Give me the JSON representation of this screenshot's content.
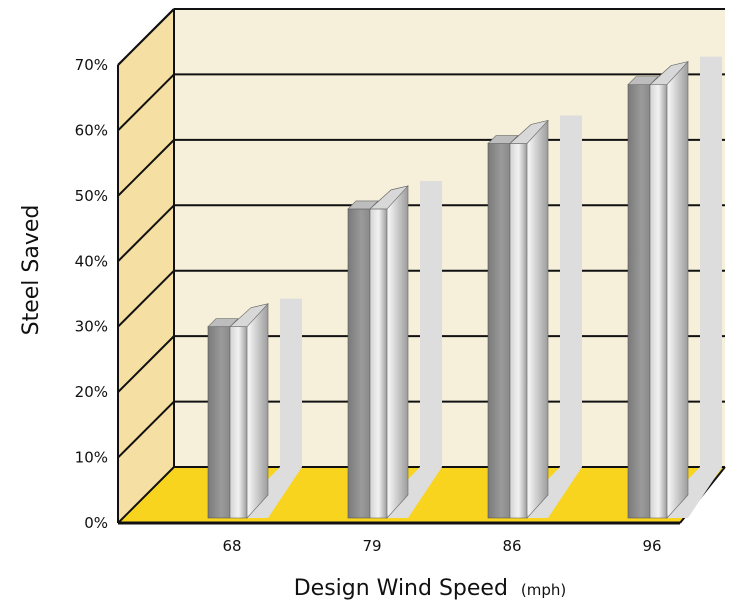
{
  "chart_data": {
    "type": "bar",
    "categories": [
      "68",
      "79",
      "86",
      "96"
    ],
    "values": [
      30,
      48,
      58,
      67
    ],
    "ylabel": "Steel Saved",
    "xlabel": "Design Wind Speed",
    "xlabel_unit": "(mph)",
    "ylim": [
      0,
      70
    ],
    "yticks": [
      "0%",
      "10%",
      "20%",
      "30%",
      "40%",
      "50%",
      "60%",
      "70%"
    ],
    "grid": true,
    "style": "3d",
    "colors": {
      "back_wall": "#F6F0DA",
      "side_wall": "#F6DFA3",
      "floor": "#F8D41E",
      "bar_face": "#8E8E8E",
      "bar_side": "#C7C7C7",
      "shadow": "#DDDDDD",
      "grid": "#111111"
    }
  }
}
